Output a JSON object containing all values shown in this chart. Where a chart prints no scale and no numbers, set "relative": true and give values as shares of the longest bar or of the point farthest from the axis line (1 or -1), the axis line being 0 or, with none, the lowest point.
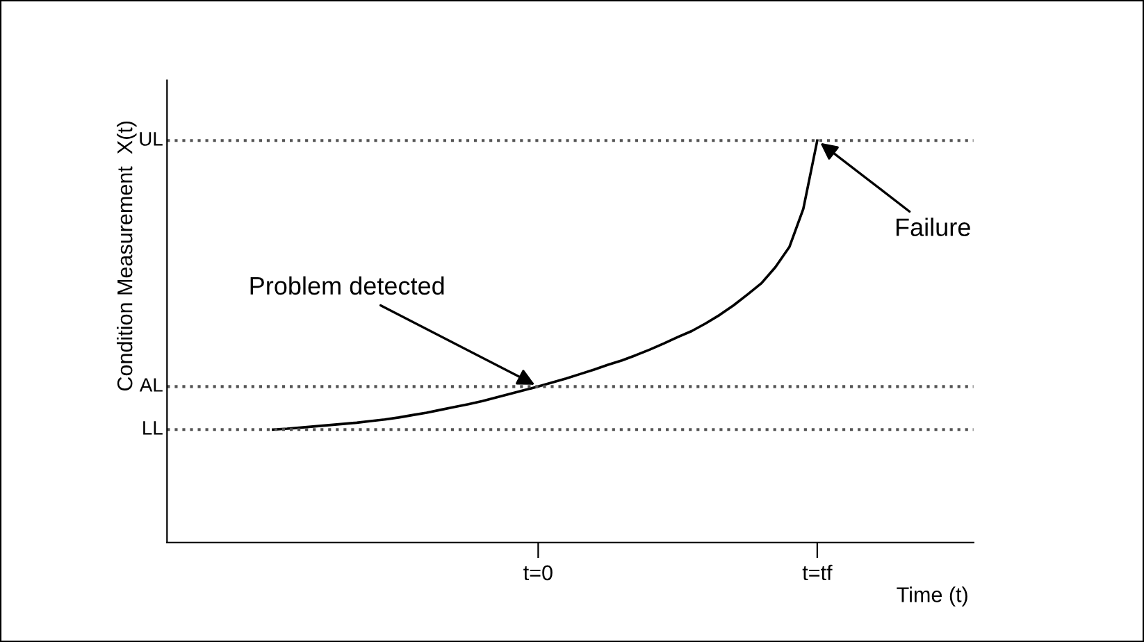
{
  "chart_data": {
    "type": "line",
    "relative": true,
    "xlabel": "Time (t)",
    "categories": [
      null,
      null,
      null,
      null,
      null,
      null,
      null,
      null,
      null,
      null,
      null,
      null,
      null,
      null,
      null,
      null,
      null,
      null,
      null,
      "t=0",
      null,
      null,
      null,
      null,
      null,
      null,
      null,
      null,
      null,
      null,
      null,
      null,
      null,
      null,
      null,
      null,
      null,
      null,
      null,
      "t=tf"
    ],
    "series": [
      {
        "color": "#000000",
        "values": [
          0.281,
          0.283,
          0.286,
          0.289,
          0.292,
          0.295,
          0.298,
          0.302,
          0.306,
          0.311,
          0.317,
          0.323,
          0.33,
          0.337,
          0.344,
          0.352,
          0.361,
          0.37,
          0.379,
          0.388,
          0.398,
          0.408,
          0.419,
          0.43,
          0.442,
          0.453,
          0.466,
          0.48,
          0.495,
          0.511,
          0.526,
          0.545,
          0.566,
          0.59,
          0.617,
          0.645,
          0.685,
          0.735,
          0.83,
          1.0
        ]
      }
    ],
    "tick_labels": "x",
    "ref_lines": [
      {
        "axis": "y",
        "value": 1.0,
        "label": "UL",
        "color": "#555555",
        "line_style": "dotted"
      },
      {
        "axis": "y",
        "value": 0.388,
        "label": "AL",
        "color": "#555555",
        "line_style": "dotted"
      },
      {
        "axis": "y",
        "value": 0.281,
        "label": "LL",
        "color": "#555555",
        "line_style": "dotted"
      }
    ],
    "annotations": [
      {
        "text": "Problem detected",
        "x": "t=0",
        "y": 0.388
      },
      {
        "text": "Failure",
        "x": "t=tf",
        "y": 1.0
      },
      "Condition Measurement  X(t)"
    ],
    "grid": false,
    "legend": false,
    "marker": "none",
    "line_style": "solid"
  }
}
